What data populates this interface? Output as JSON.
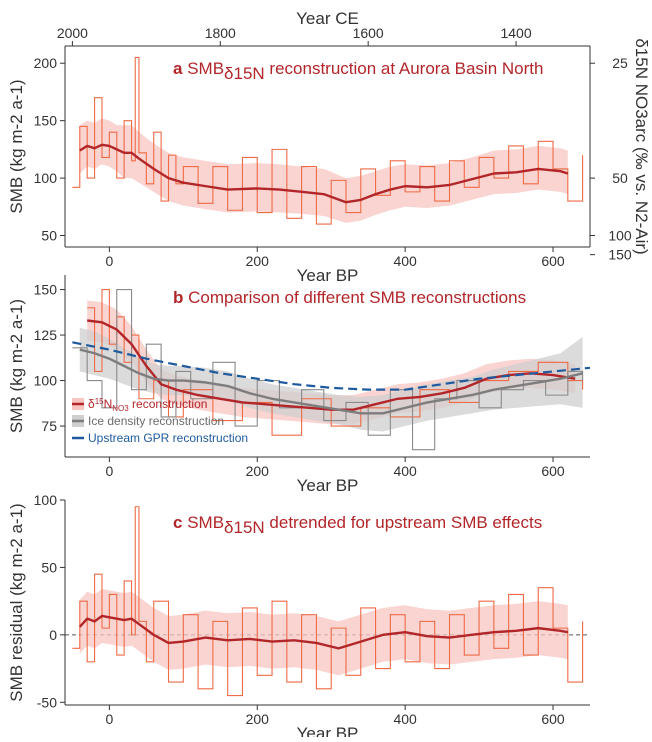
{
  "colors": {
    "accent_red": "#b2262a",
    "raw_orange": "#ef6a45",
    "band_pink": "#f7c6c1",
    "ice_grey": "#7d7d7d",
    "band_grey": "#cfcfcf",
    "gpr_blue": "#1f5a9e",
    "axis": "#333333"
  },
  "chart_data": [
    {
      "type": "line",
      "panel": "a",
      "title_prefix": "SMB",
      "title_subscript": "δ15N",
      "title_suffix": " reconstruction at Aurora Basin North",
      "xlabel": "Year BP",
      "ylabel": "SMB (kg m-2 a-1)",
      "xlim": [
        -60,
        650
      ],
      "ylim": [
        40,
        215
      ],
      "x_ticks": [
        0,
        200,
        400,
        600
      ],
      "y_ticks": [
        50,
        100,
        150,
        200
      ],
      "top_axis": {
        "label": "Year CE",
        "ticks": [
          2000,
          1800,
          1600,
          1400
        ]
      },
      "right_axis": {
        "label": "δ15N NO3arc (‰ vs. N2-Air)",
        "ticks": [
          25,
          50,
          100,
          150
        ]
      },
      "series": [
        {
          "kind": "raw",
          "x": [
            -50,
            -40,
            -30,
            -20,
            -10,
            0,
            10,
            20,
            30,
            35,
            40,
            50,
            60,
            70,
            80,
            90,
            100,
            120,
            140,
            160,
            180,
            200,
            220,
            240,
            260,
            280,
            300,
            320,
            340,
            360,
            380,
            400,
            420,
            440,
            460,
            480,
            500,
            520,
            540,
            560,
            580,
            600,
            620,
            640
          ],
          "y": [
            92,
            145,
            100,
            170,
            118,
            140,
            100,
            150,
            115,
            205,
            122,
            95,
            140,
            80,
            120,
            95,
            110,
            78,
            110,
            72,
            118,
            70,
            125,
            65,
            110,
            60,
            98,
            70,
            108,
            85,
            115,
            88,
            110,
            80,
            115,
            92,
            118,
            100,
            128,
            95,
            132,
            108,
            80,
            120
          ]
        },
        {
          "kind": "smoothed",
          "x": [
            -40,
            -30,
            -20,
            -10,
            0,
            10,
            20,
            30,
            40,
            60,
            80,
            100,
            130,
            160,
            200,
            230,
            260,
            290,
            320,
            340,
            360,
            380,
            400,
            430,
            460,
            490,
            520,
            550,
            580,
            610,
            620
          ],
          "y": [
            124,
            128,
            126,
            129,
            128,
            125,
            122,
            122,
            117,
            108,
            100,
            96,
            93,
            90,
            91,
            90,
            88,
            86,
            79,
            81,
            86,
            90,
            93,
            92,
            94,
            99,
            104,
            105,
            108,
            106,
            104
          ],
          "band_low": [
            104,
            110,
            108,
            112,
            110,
            106,
            100,
            100,
            96,
            88,
            80,
            76,
            73,
            70,
            71,
            70,
            69,
            67,
            61,
            63,
            68,
            72,
            75,
            74,
            76,
            81,
            86,
            87,
            90,
            88,
            86
          ],
          "band_high": [
            146,
            150,
            148,
            152,
            150,
            146,
            146,
            146,
            140,
            130,
            122,
            118,
            115,
            112,
            113,
            112,
            110,
            108,
            100,
            102,
            106,
            110,
            112,
            111,
            113,
            118,
            124,
            125,
            128,
            126,
            124
          ]
        }
      ]
    },
    {
      "type": "line",
      "panel": "b",
      "title": "Comparison of different SMB reconstructions",
      "xlabel": "Year BP",
      "ylabel": "SMB (kg m-2 a-1)",
      "xlim": [
        -60,
        650
      ],
      "ylim": [
        58,
        158
      ],
      "x_ticks": [
        0,
        200,
        400,
        600
      ],
      "y_ticks": [
        75,
        100,
        125,
        150
      ],
      "legend": {
        "placement": "bottom-left",
        "entries": [
          {
            "label": "δ15NNO3 reconstruction",
            "label_main": "δ",
            "label_sup": "15",
            "label_rest": "N",
            "label_sub": "NO3",
            "label_end": " reconstruction"
          },
          {
            "label": "Ice density reconstruction"
          },
          {
            "label": "Upstream GPR reconstruction"
          }
        ]
      },
      "series": [
        {
          "name": "δ15NNO3 reconstruction",
          "kind": "raw",
          "x": [
            -30,
            -20,
            -10,
            0,
            10,
            20,
            30,
            40,
            60,
            80,
            100,
            140,
            180,
            220,
            260,
            300,
            340,
            380,
            420,
            460,
            500,
            540,
            580,
            620,
            640
          ],
          "y": [
            140,
            105,
            150,
            120,
            135,
            110,
            125,
            90,
            100,
            80,
            95,
            78,
            88,
            70,
            90,
            75,
            85,
            80,
            95,
            88,
            100,
            105,
            110,
            100,
            95
          ]
        },
        {
          "name": "δ15NNO3 reconstruction",
          "kind": "smoothed",
          "x": [
            -30,
            -10,
            10,
            30,
            50,
            70,
            90,
            120,
            150,
            180,
            210,
            240,
            270,
            300,
            330,
            360,
            390,
            420,
            450,
            480,
            510,
            540,
            570,
            600,
            630
          ],
          "y": [
            133,
            132,
            128,
            120,
            108,
            98,
            95,
            92,
            90,
            88,
            87,
            86,
            85,
            84,
            84,
            87,
            90,
            91,
            93,
            96,
            101,
            103,
            104,
            103,
            101
          ],
          "band_low": [
            122,
            121,
            117,
            110,
            99,
            90,
            87,
            84,
            82,
            80,
            79,
            78,
            77,
            76,
            76,
            79,
            82,
            83,
            85,
            88,
            93,
            95,
            96,
            95,
            93
          ],
          "band_high": [
            144,
            143,
            139,
            130,
            117,
            106,
            103,
            100,
            98,
            96,
            95,
            94,
            93,
            92,
            92,
            95,
            98,
            99,
            101,
            104,
            109,
            111,
            112,
            111,
            109
          ]
        },
        {
          "name": "Ice density reconstruction",
          "kind": "raw",
          "x": [
            -50,
            -30,
            -10,
            10,
            30,
            50,
            70,
            90,
            110,
            140,
            170,
            200,
            230,
            260,
            290,
            320,
            350,
            380,
            410,
            440,
            470,
            500,
            530,
            560,
            590,
            620,
            640
          ],
          "y": [
            118,
            100,
            85,
            150,
            95,
            120,
            80,
            105,
            90,
            110,
            75,
            100,
            85,
            95,
            78,
            88,
            70,
            95,
            62,
            90,
            100,
            85,
            95,
            100,
            92,
            105,
            100
          ],
          "x_rel": [],
          "band_low": [],
          "band_high": []
        },
        {
          "name": "Ice density reconstruction",
          "kind": "smoothed",
          "x": [
            -40,
            -20,
            0,
            20,
            40,
            60,
            80,
            100,
            130,
            160,
            190,
            220,
            250,
            280,
            310,
            340,
            370,
            400,
            430,
            460,
            490,
            520,
            550,
            580,
            610,
            640
          ],
          "y": [
            117,
            115,
            112,
            108,
            104,
            101,
            100,
            100,
            99,
            97,
            93,
            90,
            88,
            86,
            84,
            82,
            82,
            85,
            88,
            90,
            92,
            95,
            97,
            99,
            101,
            104
          ],
          "band_low": [
            105,
            103,
            101,
            98,
            95,
            93,
            92,
            92,
            91,
            89,
            85,
            82,
            80,
            78,
            76,
            73,
            72,
            75,
            78,
            80,
            82,
            84,
            85,
            86,
            87,
            85
          ],
          "band_high": [
            129,
            127,
            123,
            118,
            113,
            109,
            108,
            108,
            107,
            105,
            101,
            98,
            96,
            94,
            92,
            91,
            92,
            95,
            98,
            100,
            102,
            106,
            109,
            112,
            115,
            124
          ]
        },
        {
          "name": "Upstream GPR reconstruction",
          "kind": "dashed",
          "x": [
            -50,
            0,
            50,
            100,
            150,
            200,
            250,
            300,
            350,
            400,
            450,
            500,
            550,
            600,
            650
          ],
          "y": [
            121,
            117,
            112,
            108,
            104,
            101,
            98,
            96,
            95,
            95,
            98,
            101,
            103,
            105,
            107
          ]
        }
      ]
    },
    {
      "type": "line",
      "panel": "c",
      "title_prefix": "SMB",
      "title_subscript": "δ15N",
      "title_suffix": " detrended for upstream SMB effects",
      "xlabel": "Year BP",
      "ylabel": "SMB residual (kg m-2 a-1)",
      "xlim": [
        -60,
        650
      ],
      "ylim": [
        -52,
        100
      ],
      "x_ticks": [
        0,
        200,
        400,
        600
      ],
      "y_ticks": [
        -50,
        0,
        50,
        100
      ],
      "zero_line": true,
      "series": [
        {
          "kind": "raw",
          "x": [
            -50,
            -40,
            -30,
            -20,
            -10,
            0,
            10,
            20,
            30,
            35,
            40,
            50,
            60,
            80,
            100,
            120,
            140,
            160,
            180,
            200,
            220,
            240,
            260,
            280,
            300,
            320,
            340,
            360,
            380,
            400,
            420,
            440,
            460,
            480,
            500,
            520,
            540,
            560,
            580,
            600,
            620,
            640
          ],
          "y": [
            -10,
            25,
            -20,
            45,
            5,
            30,
            -15,
            40,
            0,
            95,
            10,
            -20,
            25,
            -35,
            15,
            -40,
            10,
            -45,
            20,
            -30,
            25,
            -35,
            15,
            -40,
            5,
            -30,
            20,
            -25,
            15,
            -20,
            10,
            -25,
            15,
            -15,
            25,
            -10,
            30,
            -15,
            35,
            5,
            -35,
            10
          ]
        },
        {
          "kind": "smoothed",
          "x": [
            -40,
            -30,
            -20,
            -10,
            0,
            10,
            20,
            30,
            40,
            60,
            80,
            100,
            130,
            160,
            190,
            220,
            250,
            280,
            310,
            340,
            370,
            400,
            430,
            460,
            490,
            520,
            550,
            580,
            610,
            620
          ],
          "y": [
            6,
            12,
            10,
            14,
            13,
            12,
            11,
            12,
            8,
            0,
            -6,
            -5,
            -2,
            -4,
            -3,
            -5,
            -4,
            -6,
            -10,
            -5,
            0,
            2,
            -1,
            -2,
            0,
            2,
            3,
            5,
            3,
            2
          ],
          "band_low": [
            -14,
            -8,
            -10,
            -6,
            -7,
            -8,
            -9,
            -8,
            -12,
            -20,
            -26,
            -25,
            -22,
            -24,
            -23,
            -25,
            -24,
            -26,
            -30,
            -25,
            -20,
            -18,
            -21,
            -22,
            -20,
            -18,
            -17,
            -15,
            -17,
            -18
          ],
          "band_high": [
            26,
            32,
            30,
            34,
            33,
            32,
            31,
            32,
            28,
            20,
            14,
            15,
            18,
            16,
            17,
            15,
            16,
            14,
            10,
            15,
            20,
            22,
            19,
            18,
            20,
            22,
            23,
            25,
            23,
            22
          ]
        }
      ]
    }
  ]
}
